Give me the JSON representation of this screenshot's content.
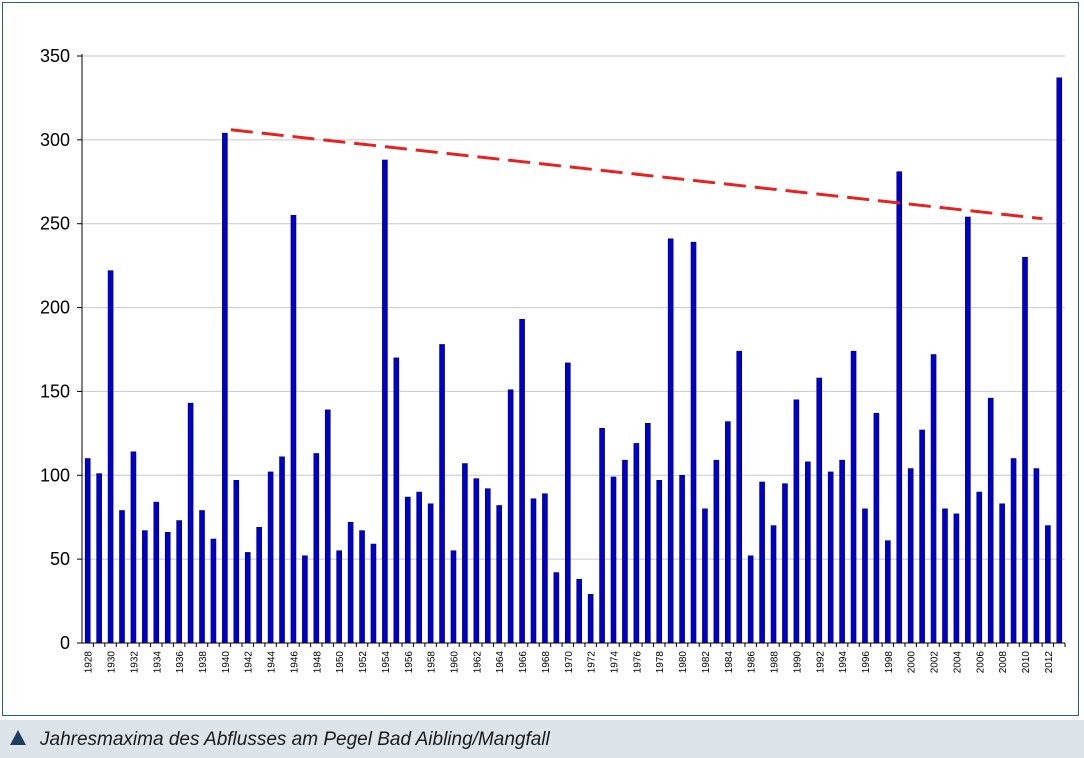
{
  "chart_data": {
    "type": "bar",
    "title": "",
    "xlabel": "",
    "ylabel": "",
    "ylim": [
      0,
      350
    ],
    "yticks": [
      0,
      50,
      100,
      150,
      200,
      250,
      300,
      350
    ],
    "grid": true,
    "bar_color": "#0000cc",
    "trend_color": "#e8201e",
    "categories": [
      1928,
      1929,
      1930,
      1931,
      1932,
      1933,
      1934,
      1935,
      1936,
      1937,
      1938,
      1939,
      1940,
      1941,
      1942,
      1943,
      1944,
      1945,
      1946,
      1947,
      1948,
      1949,
      1950,
      1951,
      1952,
      1953,
      1954,
      1955,
      1956,
      1957,
      1958,
      1959,
      1960,
      1961,
      1962,
      1963,
      1964,
      1965,
      1966,
      1967,
      1968,
      1969,
      1970,
      1971,
      1972,
      1973,
      1974,
      1975,
      1976,
      1977,
      1978,
      1979,
      1980,
      1981,
      1982,
      1983,
      1984,
      1985,
      1986,
      1987,
      1988,
      1989,
      1990,
      1991,
      1992,
      1993,
      1994,
      1995,
      1996,
      1997,
      1998,
      1999,
      2000,
      2001,
      2002,
      2003,
      2004,
      2005,
      2006,
      2007,
      2008,
      2009,
      2010,
      2011,
      2012,
      2013
    ],
    "tick_labels": [
      "1928",
      "1930",
      "1932",
      "1934",
      "1936",
      "1938",
      "1940",
      "1942",
      "1944",
      "1946",
      "1948",
      "1950",
      "1952",
      "1954",
      "1956",
      "1958",
      "1960",
      "1962",
      "1964",
      "1966",
      "1968",
      "1970",
      "1972",
      "1974",
      "1976",
      "1978",
      "1980",
      "1982",
      "1984",
      "1986",
      "1988",
      "1990",
      "1992",
      "1994",
      "1996",
      "1998",
      "2000",
      "2002",
      "2004",
      "2006",
      "2008",
      "2010",
      "2012"
    ],
    "values": [
      110,
      101,
      222,
      79,
      114,
      67,
      84,
      66,
      73,
      143,
      79,
      62,
      304,
      97,
      54,
      69,
      102,
      111,
      255,
      52,
      113,
      139,
      55,
      72,
      67,
      59,
      288,
      170,
      87,
      90,
      83,
      178,
      55,
      107,
      98,
      92,
      82,
      151,
      193,
      86,
      89,
      42,
      167,
      38,
      29,
      128,
      99,
      109,
      119,
      131,
      97,
      241,
      100,
      239,
      80,
      109,
      132,
      174,
      52,
      96,
      70,
      95,
      145,
      108,
      158,
      102,
      109,
      174,
      80,
      137,
      61,
      281,
      104,
      127,
      172,
      80,
      77,
      254,
      90,
      146,
      83,
      110,
      230,
      104,
      70,
      337
    ],
    "trend_line": {
      "x": [
        1940,
        2011
      ],
      "y": [
        306,
        253
      ]
    }
  },
  "caption": {
    "text": "Jahresmaxima des Abflusses am Pegel Bad Aibling/Mangfall",
    "icon": "triangle-up-icon"
  }
}
